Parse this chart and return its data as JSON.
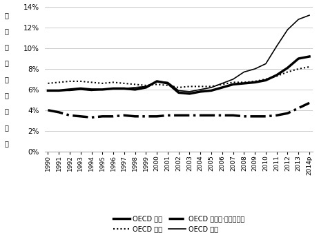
{
  "years": [
    "1990",
    "1991",
    "1992",
    "1993",
    "1994",
    "1995",
    "1996",
    "1997",
    "1998",
    "1999",
    "2000",
    "2001",
    "2002",
    "2003",
    "2004",
    "2005",
    "2006",
    "2007",
    "2008",
    "2009",
    "2010",
    "2011",
    "2012",
    "2013",
    "2014p"
  ],
  "oecd_total": [
    5.9,
    5.9,
    6.0,
    6.1,
    6.0,
    6.0,
    6.1,
    6.1,
    6.0,
    6.2,
    6.8,
    6.6,
    5.7,
    5.6,
    5.8,
    5.9,
    6.2,
    6.5,
    6.6,
    6.7,
    6.9,
    7.4,
    8.1,
    9.0,
    9.2
  ],
  "oecd_americas": [
    6.6,
    6.7,
    6.8,
    6.8,
    6.7,
    6.6,
    6.7,
    6.6,
    6.5,
    6.4,
    6.5,
    6.4,
    6.2,
    6.3,
    6.3,
    6.3,
    6.5,
    6.7,
    6.7,
    6.8,
    7.0,
    7.3,
    7.7,
    8.0,
    8.2
  ],
  "oecd_asia": [
    4.0,
    3.8,
    3.5,
    3.4,
    3.3,
    3.4,
    3.4,
    3.5,
    3.4,
    3.4,
    3.4,
    3.5,
    3.5,
    3.5,
    3.5,
    3.5,
    3.5,
    3.5,
    3.4,
    3.4,
    3.4,
    3.5,
    3.7,
    4.2,
    4.7
  ],
  "oecd_europe": [
    5.9,
    5.9,
    5.9,
    6.0,
    5.9,
    6.0,
    6.1,
    6.1,
    6.2,
    6.3,
    6.8,
    6.7,
    5.9,
    5.8,
    6.0,
    6.2,
    6.6,
    7.0,
    7.7,
    8.0,
    8.5,
    10.2,
    11.8,
    12.8,
    13.2
  ],
  "ylim": [
    0,
    14
  ],
  "yticks": [
    0,
    2,
    4,
    6,
    8,
    10,
    12,
    14
  ],
  "bg_color": "#ffffff",
  "grid_color": "#cccccc",
  "legend_total": "OECD 전체",
  "legend_americas": "OECD 미주",
  "legend_asia": "OECD 아시아·오세아니아",
  "legend_europe": "OECD 유럽",
  "ylabel_chars": [
    "신",
    "재",
    "생",
    "에",
    "너",
    "지",
    "점",
    "유",
    "율"
  ]
}
